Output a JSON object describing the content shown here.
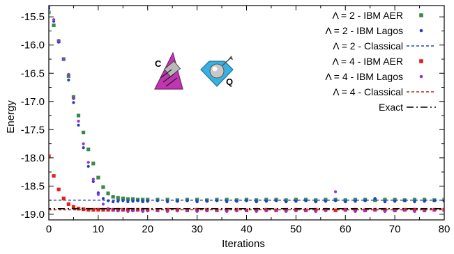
{
  "chart_data": {
    "type": "scatter",
    "title": "",
    "xlabel": "Iterations",
    "ylabel": "Energy",
    "xlim": [
      0,
      80
    ],
    "ylim": [
      -19.1,
      -15.3
    ],
    "xticks": [
      "0",
      "10",
      "20",
      "30",
      "40",
      "50",
      "60",
      "70",
      "80"
    ],
    "yticks": [
      "-15.5",
      "-16.0",
      "-16.5",
      "-17.0",
      "-17.5",
      "-18.0",
      "-18.5",
      "-19.0"
    ],
    "grid": false,
    "legend": "top-right",
    "icon_labels": {
      "classical": "C",
      "quantum": "Q"
    },
    "series": [
      {
        "name": "Λ = 2 - IBM AER",
        "style": "square",
        "color": "#3a8a46",
        "x": [
          0,
          1,
          2,
          3,
          4,
          5,
          6,
          7,
          8,
          9,
          10,
          11,
          12,
          13,
          14,
          15,
          16,
          17,
          18,
          19,
          20,
          22,
          24,
          26,
          28,
          30,
          32,
          34,
          36,
          38,
          40,
          42,
          44,
          46,
          48,
          50,
          52,
          54,
          56,
          58,
          60,
          62,
          64,
          66,
          68,
          70,
          72,
          74,
          76,
          78,
          80
        ],
        "y": [
          -15.42,
          -15.65,
          -15.93,
          -16.25,
          -16.55,
          -16.92,
          -17.25,
          -17.55,
          -17.85,
          -18.1,
          -18.35,
          -18.52,
          -18.63,
          -18.69,
          -18.71,
          -18.72,
          -18.73,
          -18.73,
          -18.74,
          -18.74,
          -18.74,
          -18.74,
          -18.74,
          -18.75,
          -18.74,
          -18.74,
          -18.75,
          -18.74,
          -18.74,
          -18.75,
          -18.74,
          -18.75,
          -18.74,
          -18.74,
          -18.75,
          -18.74,
          -18.74,
          -18.75,
          -18.74,
          -18.74,
          -18.75,
          -18.74,
          -18.74,
          -18.75,
          -18.74,
          -18.74,
          -18.75,
          -18.74,
          -18.74,
          -18.75,
          -18.74
        ]
      },
      {
        "name": "Λ = 2 - IBM Lagos",
        "style": "dot",
        "color": "#1f3fd0",
        "x": [
          0,
          1,
          2,
          3,
          4,
          5,
          6,
          7,
          8,
          9,
          10,
          11,
          12,
          13,
          14,
          15,
          16,
          17,
          18,
          19,
          20,
          22,
          24,
          26,
          28,
          30,
          32,
          34,
          36,
          38,
          40,
          42,
          44,
          46,
          48,
          50,
          52,
          54,
          56,
          58,
          60,
          62,
          64,
          66,
          68,
          70,
          72,
          74,
          76,
          78,
          80
        ],
        "y": [
          -15.35,
          -15.58,
          -15.95,
          -16.25,
          -16.62,
          -17.02,
          -17.42,
          -17.82,
          -18.15,
          -18.42,
          -18.62,
          -18.72,
          -18.76,
          -18.78,
          -18.77,
          -18.76,
          -18.78,
          -18.77,
          -18.76,
          -18.78,
          -18.77,
          -18.76,
          -18.78,
          -18.77,
          -18.76,
          -18.78,
          -18.77,
          -18.76,
          -18.78,
          -18.77,
          -18.76,
          -18.78,
          -18.77,
          -18.76,
          -18.78,
          -18.77,
          -18.76,
          -18.78,
          -18.77,
          -18.76,
          -18.78,
          -18.77,
          -18.76,
          -18.72,
          -18.78,
          -18.77,
          -18.76,
          -18.78,
          -18.77,
          -18.76,
          -18.77
        ]
      },
      {
        "name": "Λ = 2 - Classical",
        "style": "dashed-line",
        "color": "#1f3fd0",
        "x": [
          -1,
          80
        ],
        "y": [
          -18.75,
          -18.75
        ]
      },
      {
        "name": "Λ = 4 - IBM AER",
        "style": "square",
        "color": "#e0201c",
        "x": [
          0,
          1,
          2,
          3,
          4,
          5,
          6,
          7,
          8,
          9,
          10,
          11,
          12,
          13,
          14,
          15,
          16,
          17,
          18,
          19,
          20,
          22,
          24,
          26,
          28,
          30,
          32,
          34,
          36,
          38,
          40,
          42,
          44,
          46,
          48,
          50,
          52,
          54,
          56,
          58,
          60,
          62,
          64,
          66,
          68,
          70,
          72,
          74,
          76,
          78,
          80
        ],
        "y": [
          -17.97,
          -18.32,
          -18.56,
          -18.72,
          -18.82,
          -18.87,
          -18.9,
          -18.91,
          -18.92,
          -18.92,
          -18.92,
          -18.92,
          -18.92,
          -18.92,
          -18.92,
          -18.92,
          -18.92,
          -18.92,
          -18.92,
          -18.92,
          -18.92,
          -18.93,
          -18.92,
          -18.92,
          -18.93,
          -18.92,
          -18.92,
          -18.93,
          -18.92,
          -18.92,
          -18.93,
          -18.92,
          -18.92,
          -18.93,
          -18.92,
          -18.92,
          -18.93,
          -18.92,
          -18.92,
          -18.93,
          -18.92,
          -18.92,
          -18.93,
          -18.92,
          -18.92,
          -18.93,
          -18.92,
          -18.92,
          -18.93,
          -18.92,
          -18.92
        ]
      },
      {
        "name": "Λ = 4 - IBM Lagos",
        "style": "dot",
        "color": "#9a2fd0",
        "x": [
          0,
          1,
          2,
          3,
          4,
          5,
          6,
          7,
          8,
          9,
          10,
          11,
          12,
          13,
          14,
          15,
          16,
          17,
          18,
          19,
          20,
          22,
          24,
          26,
          28,
          30,
          32,
          34,
          36,
          38,
          40,
          42,
          44,
          46,
          48,
          50,
          52,
          54,
          56,
          58,
          60,
          62,
          64,
          66,
          68,
          70,
          72,
          74,
          76,
          78,
          80
        ],
        "y": [
          -15.32,
          -15.55,
          -15.92,
          -16.25,
          -16.52,
          -16.95,
          -17.35,
          -17.75,
          -18.08,
          -18.38,
          -18.65,
          -18.82,
          -18.9,
          -18.93,
          -18.94,
          -18.93,
          -18.95,
          -18.94,
          -18.93,
          -18.95,
          -18.94,
          -18.93,
          -18.95,
          -18.94,
          -18.93,
          -18.95,
          -18.94,
          -18.93,
          -18.95,
          -18.94,
          -18.93,
          -18.95,
          -18.94,
          -18.93,
          -18.95,
          -18.94,
          -18.93,
          -18.95,
          -18.94,
          -18.6,
          -18.93,
          -18.95,
          -18.94,
          -18.93,
          -18.95,
          -18.94,
          -18.93,
          -18.95,
          -18.94,
          -18.93,
          -18.94
        ]
      },
      {
        "name": "Λ = 4 - Classical",
        "style": "dashed-line",
        "color": "#c0201c",
        "x": [
          -1,
          80
        ],
        "y": [
          -18.92,
          -18.92
        ]
      },
      {
        "name": "Exact",
        "style": "dashdot-line",
        "color": "#000000",
        "x": [
          -1,
          80
        ],
        "y": [
          -18.9,
          -18.9
        ]
      }
    ]
  }
}
